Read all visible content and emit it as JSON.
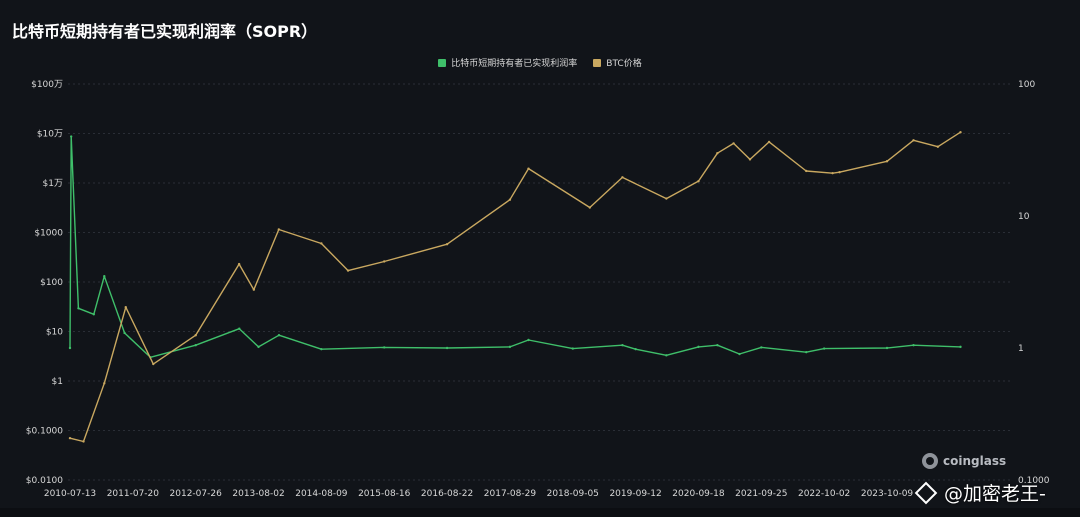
{
  "title": "比特币短期持有者已实现利润率（SOPR）",
  "legend": [
    {
      "label": "比特币短期持有者已实现利润率",
      "color": "#3fbf6a"
    },
    {
      "label": "BTC价格",
      "color": "#c9a860"
    }
  ],
  "watermark": {
    "brand": "coinglass",
    "author": "@加密老王-"
  },
  "chart_data": {
    "type": "line",
    "title": "比特币短期持有者已实现利润率（SOPR）",
    "x_tick_labels": [
      "2010-07-13",
      "2011-07-20",
      "2012-07-26",
      "2013-08-02",
      "2014-08-09",
      "2015-08-16",
      "2016-08-22",
      "2017-08-29",
      "2018-09-05",
      "2019-09-12",
      "2020-09-18",
      "2021-09-25",
      "2022-10-02",
      "2023-10-09"
    ],
    "left_axis": {
      "scale": "log",
      "range": [
        0.01,
        1000000
      ],
      "tick_labels": [
        "$100万",
        "$10万",
        "$1万",
        "$1000",
        "$100",
        "$10",
        "$1",
        "$0.1000",
        "$0.0100"
      ]
    },
    "right_axis": {
      "scale": "log",
      "range": [
        0.1,
        100
      ],
      "tick_labels": [
        "100",
        "10",
        "1",
        "0.1000"
      ]
    },
    "grid": true,
    "legend_position": "top-center",
    "series": [
      {
        "name": "BTC价格",
        "axis": "left",
        "color": "#c9a860",
        "x": [
          "2010-07-13",
          "2010-10-01",
          "2011-02-01",
          "2011-06-08",
          "2011-11-18",
          "2012-07-26",
          "2013-04-09",
          "2013-07-05",
          "2013-11-30",
          "2014-08-09",
          "2015-01-14",
          "2015-08-16",
          "2016-08-22",
          "2017-08-29",
          "2017-12-17",
          "2018-12-15",
          "2019-06-26",
          "2020-03-12",
          "2020-09-18",
          "2021-01-08",
          "2021-04-14",
          "2021-07-20",
          "2021-11-10",
          "2022-06-18",
          "2022-11-21",
          "2023-01-01",
          "2023-10-09",
          "2024-03-14",
          "2024-08-05",
          "2024-12-17"
        ],
        "values": [
          0.07,
          0.06,
          0.9,
          31,
          2.2,
          8.4,
          230,
          70,
          1150,
          600,
          170,
          260,
          580,
          4600,
          19500,
          3200,
          13000,
          4850,
          10900,
          40000,
          63000,
          30000,
          67500,
          17500,
          15800,
          16500,
          27500,
          73000,
          54000,
          106000
        ]
      },
      {
        "name": "比特币短期持有者已实现利润率",
        "axis": "right",
        "color": "#3fbf6a",
        "x": [
          "2010-07-13",
          "2010-07-20",
          "2010-09-01",
          "2010-12-01",
          "2011-02-01",
          "2011-06-01",
          "2011-11-01",
          "2012-07-26",
          "2013-04-10",
          "2013-08-02",
          "2013-12-01",
          "2014-08-09",
          "2015-08-16",
          "2016-08-22",
          "2017-08-29",
          "2017-12-17",
          "2018-09-05",
          "2019-06-26",
          "2019-09-12",
          "2020-03-12",
          "2020-09-18",
          "2021-01-08",
          "2021-05-19",
          "2021-09-25",
          "2022-06-18",
          "2022-10-02",
          "2023-10-09",
          "2024-03-14",
          "2024-12-17"
        ],
        "values": [
          1.0,
          40.0,
          2.0,
          1.8,
          3.5,
          1.3,
          0.85,
          1.05,
          1.4,
          1.02,
          1.25,
          0.98,
          1.01,
          1.0,
          1.02,
          1.15,
          0.99,
          1.05,
          0.98,
          0.88,
          1.02,
          1.05,
          0.9,
          1.01,
          0.93,
          0.99,
          1.0,
          1.05,
          1.02
        ]
      }
    ]
  }
}
